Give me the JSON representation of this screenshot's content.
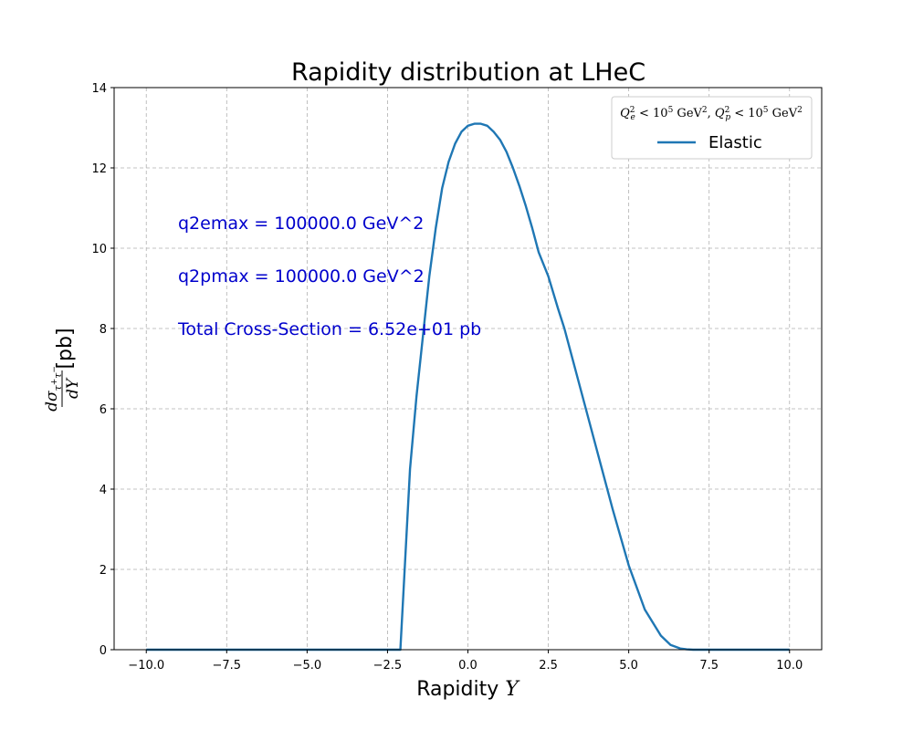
{
  "chart_data": {
    "type": "line",
    "title": "Rapidity distribution at LHeC",
    "xlabel": "Rapidity Y",
    "ylabel": "dσ_{τ⁺τ⁻}/dY [pb]",
    "xlim": [
      -11,
      11
    ],
    "ylim": [
      0,
      14
    ],
    "xticks": [
      -10,
      -7.5,
      -5,
      -2.5,
      0,
      2.5,
      5,
      7.5,
      10
    ],
    "xtick_labels": [
      "−10.0",
      "−7.5",
      "−5.0",
      "−2.5",
      "0.0",
      "2.5",
      "5.0",
      "7.5",
      "10.0"
    ],
    "yticks": [
      0,
      2,
      4,
      6,
      8,
      10,
      12,
      14
    ],
    "ytick_labels": [
      "0",
      "2",
      "4",
      "6",
      "8",
      "10",
      "12",
      "14"
    ],
    "grid": true,
    "legend_position": "top-right",
    "legend_title": "Q_e² < 10⁵ GeV², Q_p² < 10⁵ GeV²",
    "annotations": [
      "q2emax = 100000.0 GeV^2",
      "q2pmax = 100000.0 GeV^2",
      "Total Cross-Section = 6.52e+01 pb"
    ],
    "series": [
      {
        "name": "Elastic",
        "color": "#1f77b4",
        "x": [
          -10,
          -2.1,
          -2.0,
          -1.9,
          -1.8,
          -1.6,
          -1.4,
          -1.2,
          -1.0,
          -0.8,
          -0.6,
          -0.4,
          -0.2,
          0.0,
          0.2,
          0.4,
          0.6,
          0.8,
          1.0,
          1.2,
          1.4,
          1.6,
          1.8,
          2.0,
          2.2,
          2.5,
          2.8,
          3.0,
          3.5,
          4.0,
          4.5,
          5.0,
          5.5,
          6.0,
          6.3,
          6.6,
          6.8,
          7.0,
          8.0,
          10.0
        ],
        "y": [
          0,
          0,
          1.5,
          3.0,
          4.5,
          6.3,
          7.8,
          9.3,
          10.5,
          11.5,
          12.15,
          12.6,
          12.9,
          13.05,
          13.1,
          13.1,
          13.05,
          12.9,
          12.7,
          12.4,
          12.0,
          11.55,
          11.05,
          10.5,
          9.9,
          9.3,
          8.5,
          8.0,
          6.5,
          5.0,
          3.5,
          2.1,
          1.0,
          0.35,
          0.12,
          0.03,
          0.01,
          0.0,
          0.0,
          0.0
        ]
      }
    ]
  }
}
